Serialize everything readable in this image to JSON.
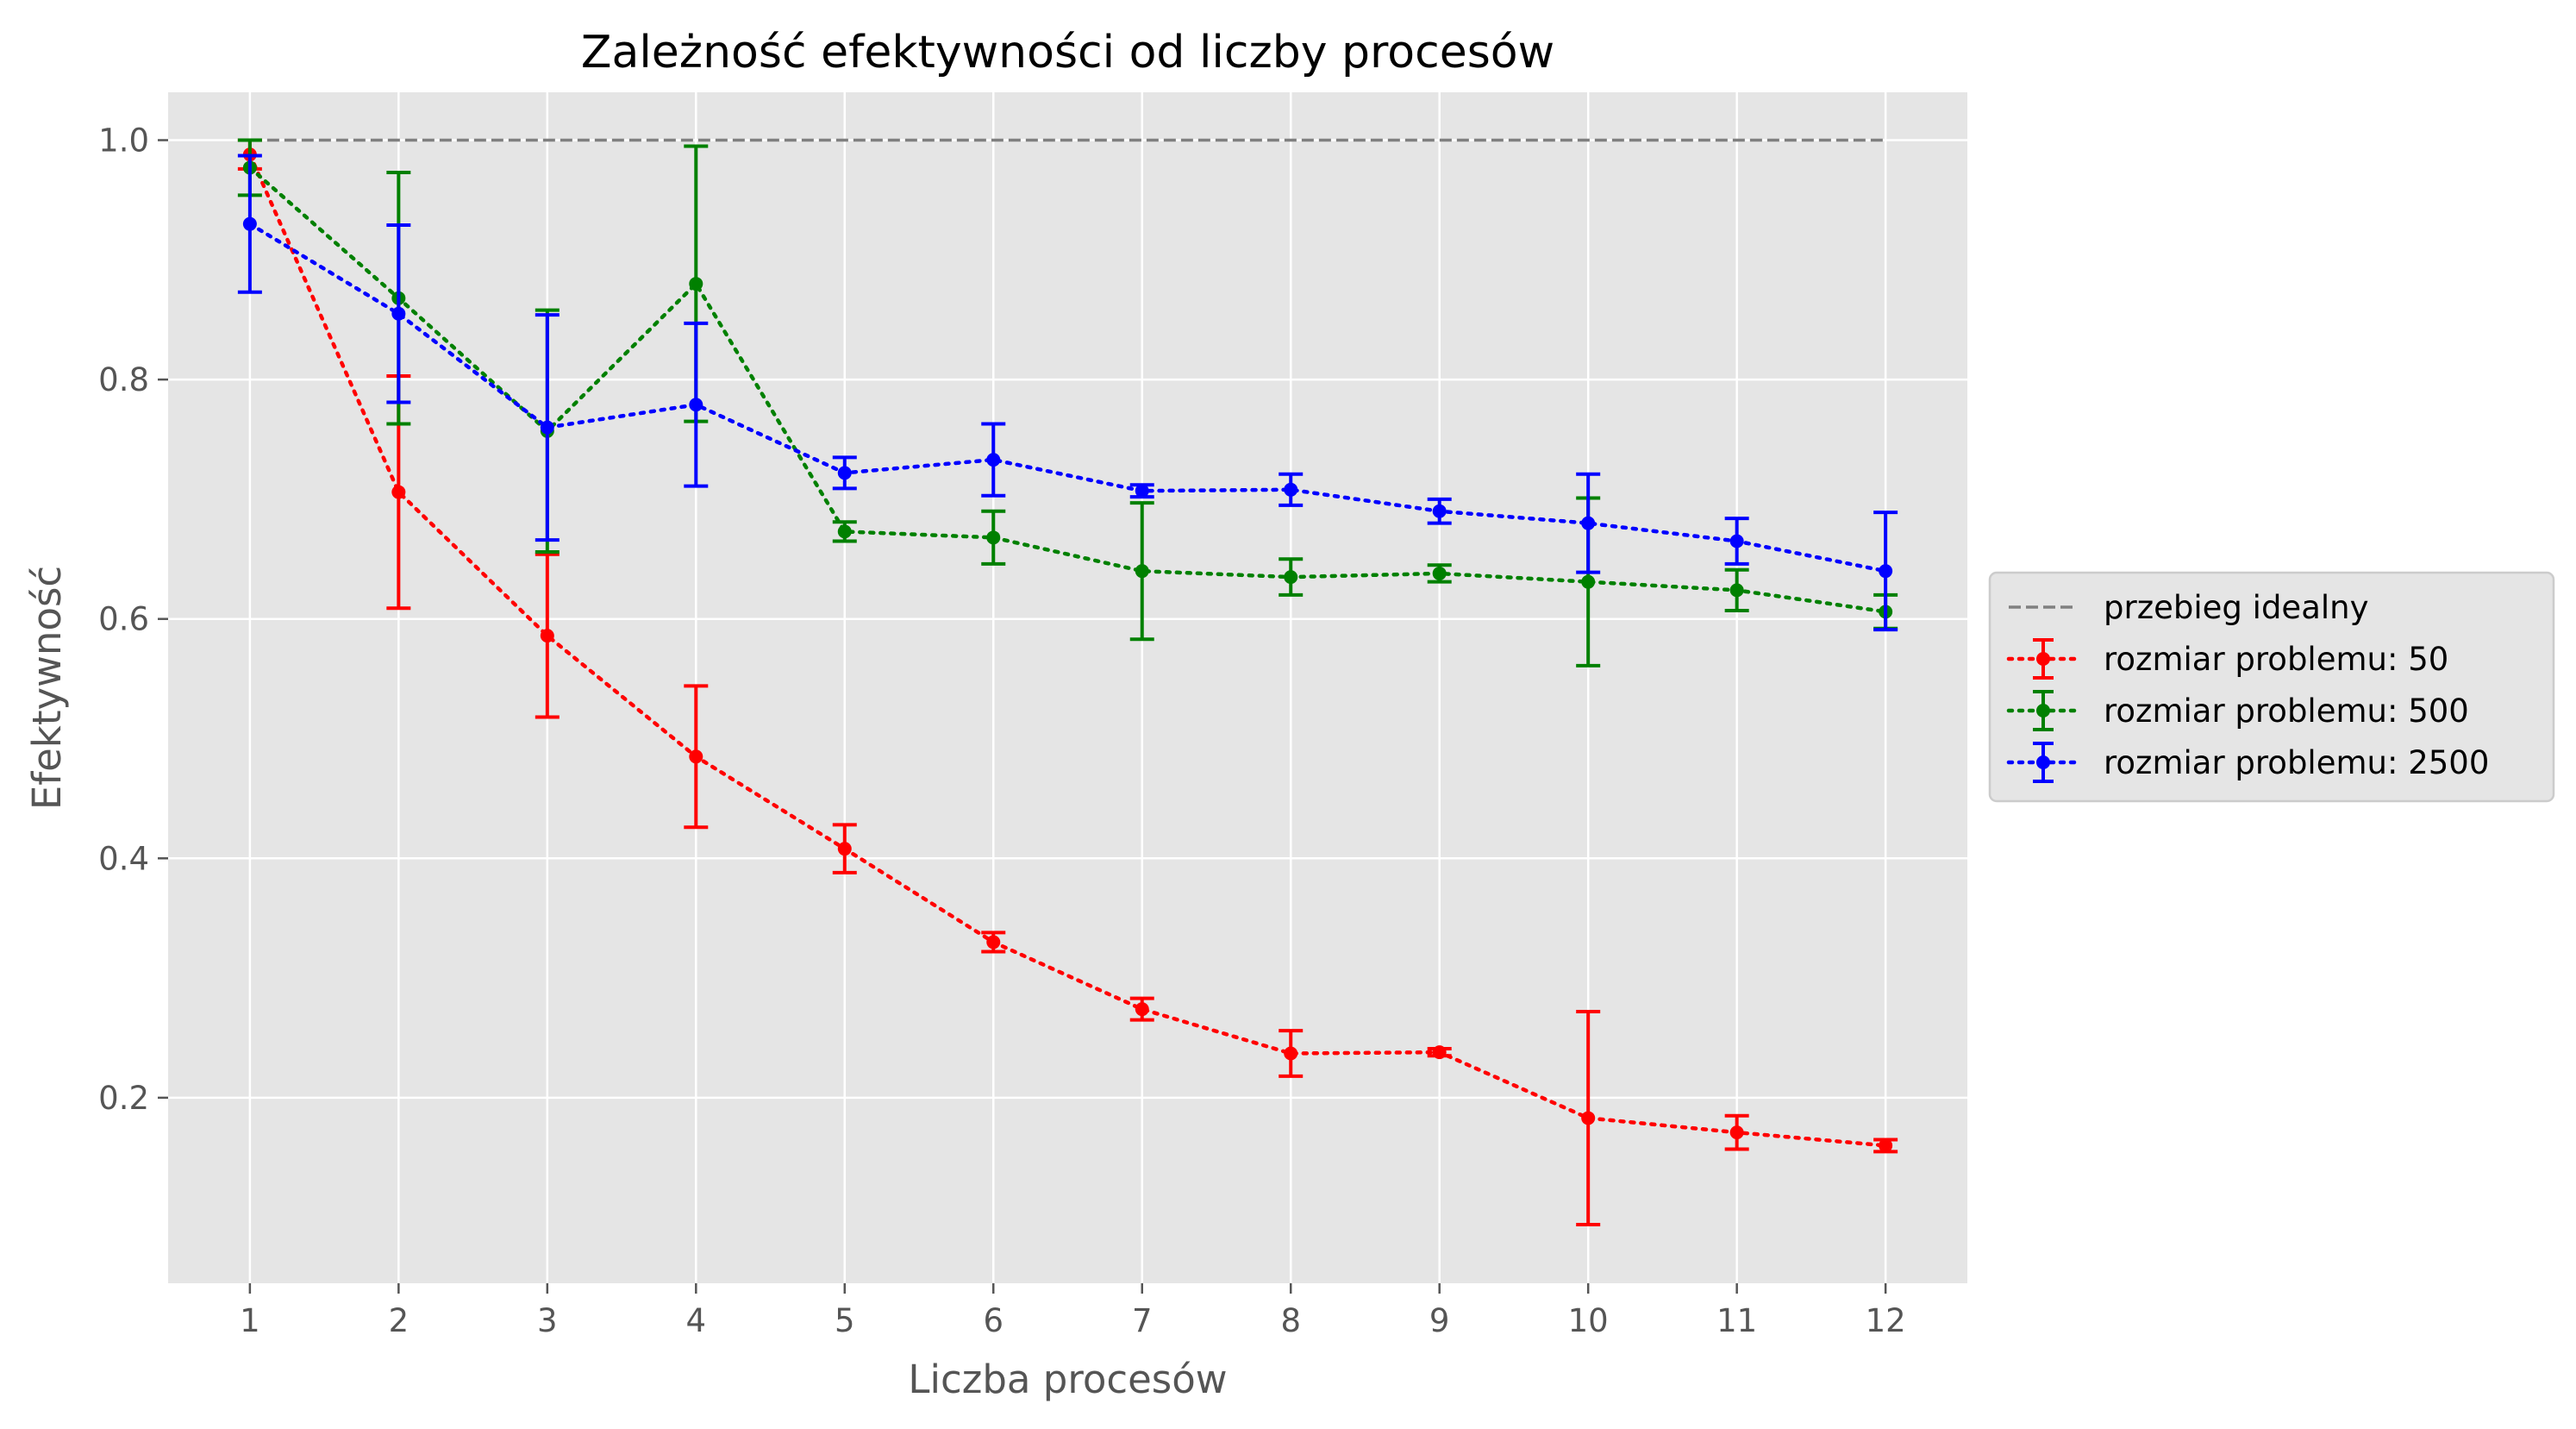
{
  "chart_data": {
    "type": "line",
    "title": "Zależność efektywności od liczby procesów",
    "xlabel": "Liczba procesów",
    "ylabel": "Efektywność",
    "x": [
      1,
      2,
      3,
      4,
      5,
      6,
      7,
      8,
      9,
      10,
      11,
      12
    ],
    "xticks": [
      "1",
      "2",
      "3",
      "4",
      "5",
      "6",
      "7",
      "8",
      "9",
      "10",
      "11",
      "12"
    ],
    "yticks": [
      "0.2",
      "0.4",
      "0.6",
      "0.8",
      "1.0"
    ],
    "ytick_values": [
      0.2,
      0.4,
      0.6,
      0.8,
      1.0
    ],
    "xlim": [
      0.45,
      12.55
    ],
    "ylim": [
      0.045,
      1.04
    ],
    "grid": true,
    "legend_position": "right-center",
    "background": "#e5e5e5",
    "ideal": {
      "name": "przebieg idealny",
      "x": [
        1,
        12
      ],
      "values": [
        1.0,
        1.0
      ],
      "color": "#808080"
    },
    "series": [
      {
        "name": "rozmiar problemu: 50",
        "color": "#ff0000",
        "values": [
          0.988,
          0.706,
          0.586,
          0.485,
          0.408,
          0.33,
          0.274,
          0.237,
          0.238,
          0.183,
          0.171,
          0.16
        ],
        "errors": [
          0.012,
          0.097,
          0.068,
          0.059,
          0.02,
          0.008,
          0.009,
          0.019,
          0.003,
          0.089,
          0.014,
          0.005
        ]
      },
      {
        "name": "rozmiar problemu: 500",
        "color": "#008000",
        "values": [
          0.977,
          0.868,
          0.757,
          0.88,
          0.673,
          0.668,
          0.64,
          0.635,
          0.638,
          0.631,
          0.624,
          0.606
        ],
        "errors": [
          0.023,
          0.105,
          0.101,
          0.115,
          0.008,
          0.022,
          0.057,
          0.015,
          0.007,
          0.07,
          0.017,
          0.014
        ]
      },
      {
        "name": "rozmiar problemu: 2500",
        "color": "#0000ff",
        "values": [
          0.93,
          0.855,
          0.76,
          0.779,
          0.722,
          0.733,
          0.707,
          0.708,
          0.69,
          0.68,
          0.665,
          0.64
        ],
        "errors": [
          0.057,
          0.074,
          0.094,
          0.068,
          0.013,
          0.03,
          0.005,
          0.013,
          0.01,
          0.041,
          0.019,
          0.049
        ]
      }
    ]
  }
}
